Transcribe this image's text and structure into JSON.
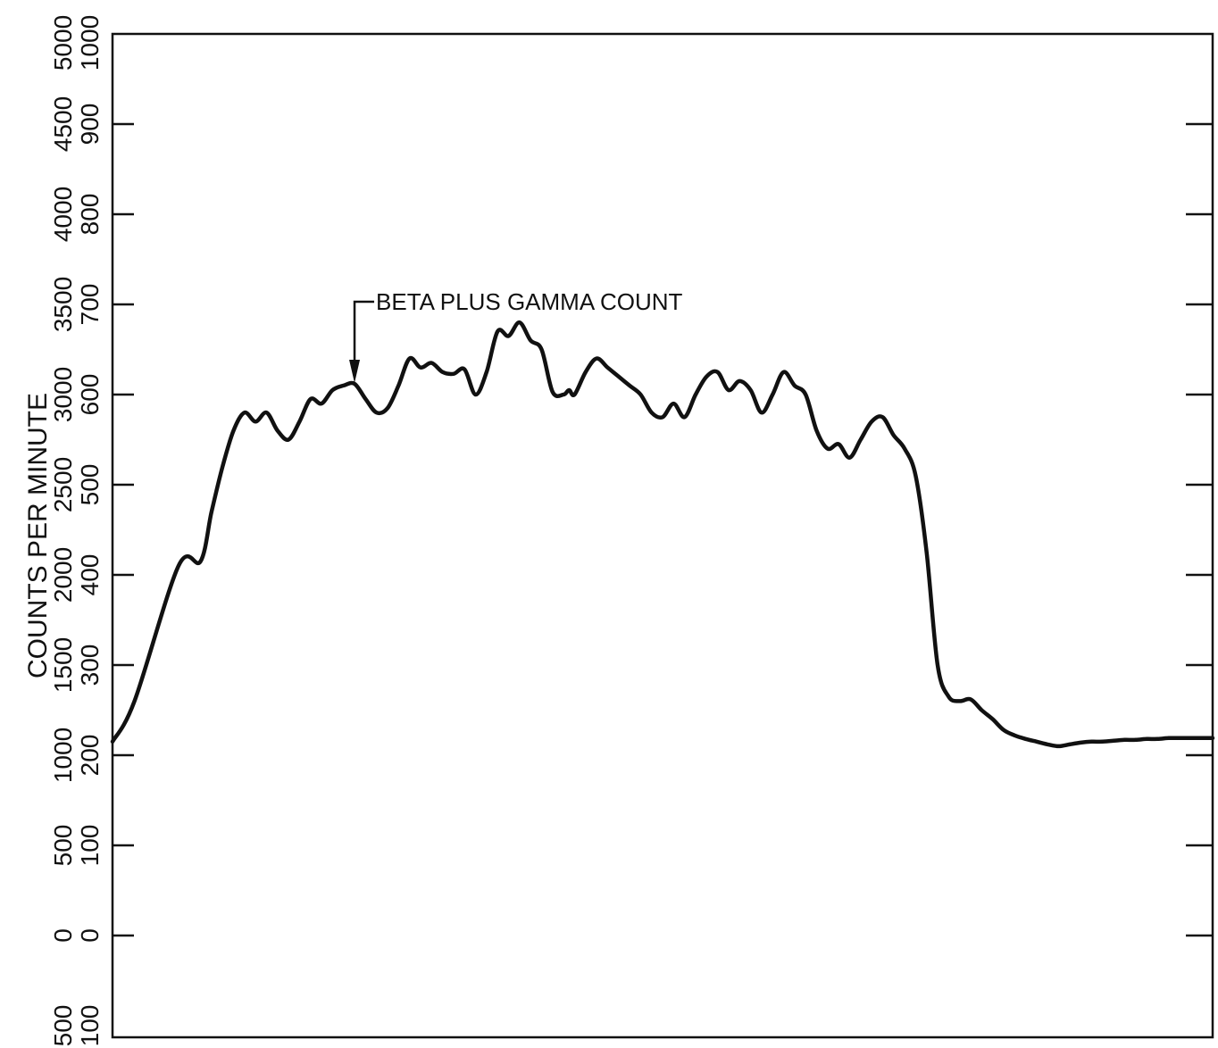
{
  "chart_data": {
    "type": "line",
    "title": "",
    "ylabel": "COUNTS PER MINUTE",
    "xlabel": "",
    "grid": false,
    "y_scales": [
      {
        "name": "outer",
        "ticks": [
          "500",
          "0",
          "500",
          "1000",
          "1500",
          "2000",
          "2500",
          "3000",
          "3500",
          "4000",
          "4500",
          "5000"
        ]
      },
      {
        "name": "inner",
        "ticks": [
          "100",
          "0",
          "100",
          "200",
          "300",
          "400",
          "500",
          "600",
          "700",
          "800",
          "900",
          "1000"
        ]
      }
    ],
    "ylim_inner": [
      -100,
      1000
    ],
    "xlim": [
      0,
      100
    ],
    "annotation": {
      "text": "BETA PLUS GAMMA COUNT",
      "x": 22,
      "y": 603
    },
    "series": [
      {
        "x": [
          0,
          2,
          6,
          8,
          9,
          10,
          11,
          12,
          13,
          14,
          15,
          16,
          17,
          18,
          19,
          20,
          21,
          22,
          23,
          24,
          25,
          26,
          27,
          28,
          29,
          30,
          31,
          32,
          33,
          34,
          35,
          36,
          37,
          38,
          39,
          40,
          41,
          41.5,
          42,
          43,
          44,
          45,
          46,
          47,
          48,
          49,
          50,
          51,
          52,
          53,
          54,
          55,
          56,
          57,
          58,
          59,
          60,
          61,
          62,
          63,
          64,
          65,
          66,
          67,
          68,
          69,
          70,
          71,
          72,
          73,
          74,
          75,
          76,
          77,
          78,
          79,
          80,
          81,
          82,
          83,
          84,
          85,
          86,
          87,
          88,
          89,
          90,
          91,
          92,
          93,
          94,
          95,
          96,
          97,
          98,
          99,
          100
        ],
        "y": [
          215,
          260,
          410,
          415,
          470,
          520,
          560,
          580,
          570,
          580,
          560,
          550,
          570,
          595,
          590,
          605,
          610,
          612,
          595,
          580,
          585,
          610,
          640,
          630,
          635,
          625,
          623,
          628,
          600,
          625,
          670,
          665,
          680,
          660,
          650,
          603,
          600,
          605,
          600,
          625,
          640,
          630,
          620,
          610,
          600,
          580,
          575,
          590,
          575,
          600,
          620,
          625,
          605,
          615,
          605,
          580,
          600,
          625,
          610,
          600,
          560,
          540,
          545,
          530,
          550,
          570,
          575,
          555,
          540,
          510,
          425,
          300,
          265,
          260,
          262,
          250,
          240,
          228,
          222,
          218,
          215,
          212,
          210,
          212,
          214,
          215,
          215,
          216,
          217,
          217,
          218,
          218,
          219,
          219,
          219,
          219,
          219
        ]
      }
    ]
  }
}
